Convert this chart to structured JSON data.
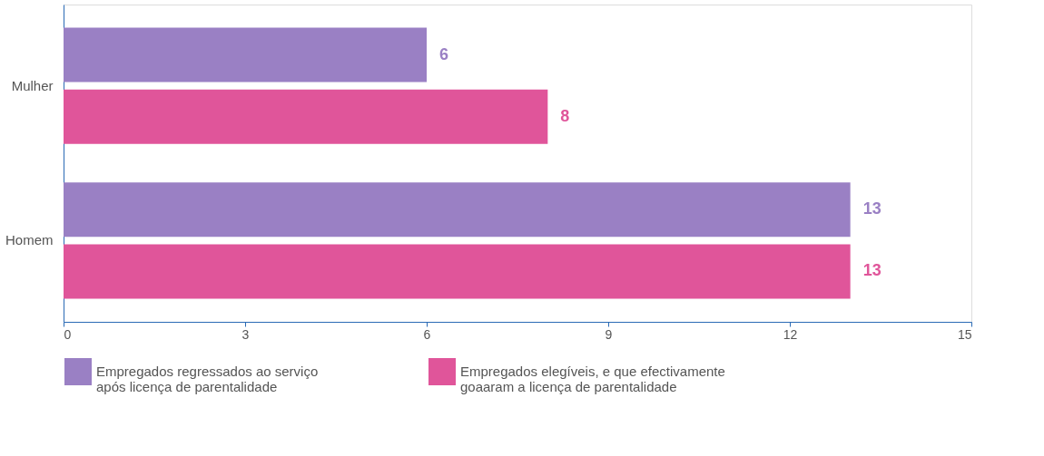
{
  "chart_data": {
    "type": "bar",
    "orientation": "horizontal",
    "categories": [
      "Mulher",
      "Homem"
    ],
    "series": [
      {
        "name": "Empregados regressados ao serviço após licença de parentalidade",
        "color": "#9a80c4",
        "values": [
          6,
          13
        ]
      },
      {
        "name": "Empregados elegíveis, e que efectivamente goaaram a licença de parentalidade",
        "color": "#e0559a",
        "values": [
          8,
          13
        ]
      }
    ],
    "xlim": [
      0,
      15
    ],
    "xticks": [
      0,
      3,
      6,
      9,
      12,
      15
    ],
    "data_labels": true,
    "grid": false,
    "legend": "bottom"
  }
}
